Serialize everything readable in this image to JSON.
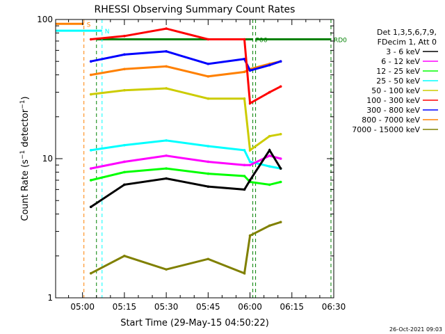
{
  "chart_data": {
    "type": "line",
    "title": "RHESSI Observing Summary Count Rates",
    "ylabel_main": "Count Rate (s",
    "ylabel_sup": "−1",
    "ylabel_tail": " detector",
    "ylabel_end": ")",
    "xlabel": "Start Time (29-May-15 04:50:22)",
    "yscale": "log",
    "ylim": [
      1,
      100
    ],
    "xlim": [
      "04:50:22",
      "06:30:00"
    ],
    "x_ticks": [
      "05:00",
      "05:15",
      "05:30",
      "05:45",
      "06:00",
      "06:15",
      "06:30"
    ],
    "y_ticks": [
      "1",
      "10",
      "100"
    ],
    "timestamp": "26-Oct-2021 09:03",
    "legend_header": [
      "Det 1,3,5,6,7,9,",
      "FDecim 1, Att 0"
    ],
    "series": [
      {
        "name": "3 - 6 keV",
        "color": "#000000",
        "x": [
          "05:03",
          "05:15",
          "05:30",
          "05:45",
          "05:58",
          "06:00",
          "06:07",
          "06:11"
        ],
        "y": [
          4.5,
          6.5,
          7.2,
          6.3,
          6.0,
          7.0,
          11.5,
          8.5
        ]
      },
      {
        "name": "6 - 12 keV",
        "color": "#ff00ff",
        "x": [
          "05:03",
          "05:15",
          "05:30",
          "05:45",
          "05:58",
          "06:00",
          "06:07",
          "06:11"
        ],
        "y": [
          8.5,
          9.5,
          10.5,
          9.5,
          9.0,
          9.0,
          10.5,
          10.0
        ]
      },
      {
        "name": "12 - 25 keV",
        "color": "#00ff00",
        "x": [
          "05:03",
          "05:15",
          "05:30",
          "05:45",
          "05:58",
          "06:00",
          "06:07",
          "06:11"
        ],
        "y": [
          7.0,
          8.0,
          8.5,
          7.8,
          7.5,
          6.8,
          6.5,
          6.8
        ]
      },
      {
        "name": "25 - 50 keV",
        "color": "#00ffff",
        "x": [
          "05:03",
          "05:15",
          "05:30",
          "05:45",
          "05:58",
          "06:00",
          "06:07",
          "06:11"
        ],
        "y": [
          11.5,
          12.5,
          13.5,
          12.3,
          11.5,
          9.5,
          8.8,
          8.5
        ]
      },
      {
        "name": "50 - 100 keV",
        "color": "#cccc00",
        "x": [
          "05:03",
          "05:15",
          "05:30",
          "05:45",
          "05:58",
          "06:00",
          "06:07",
          "06:11"
        ],
        "y": [
          29,
          31,
          32,
          27,
          27,
          11.5,
          14.5,
          15.0
        ]
      },
      {
        "name": "100 - 300 keV",
        "color": "#ff0000",
        "x": [
          "05:03",
          "05:15",
          "05:30",
          "05:45",
          "05:58",
          "06:00",
          "06:07",
          "06:11"
        ],
        "y": [
          72,
          76,
          86,
          72,
          72,
          25,
          30,
          33
        ]
      },
      {
        "name": "300 - 800 keV",
        "color": "#0000ff",
        "x": [
          "05:03",
          "05:15",
          "05:30",
          "05:45",
          "05:58",
          "06:00",
          "06:07",
          "06:11"
        ],
        "y": [
          50,
          56,
          59,
          48,
          52,
          43,
          47,
          50
        ]
      },
      {
        "name": "800 - 7000 keV",
        "color": "#ff8000",
        "x": [
          "05:03",
          "05:15",
          "05:30",
          "05:45",
          "05:58",
          "06:00",
          "06:07",
          "06:11"
        ],
        "y": [
          40,
          44,
          46,
          39,
          42,
          44,
          48,
          50
        ]
      },
      {
        "name": "7000 - 15000 keV",
        "color": "#808000",
        "x": [
          "05:03",
          "05:15",
          "05:30",
          "05:45",
          "05:58",
          "06:00",
          "06:07",
          "06:11"
        ],
        "y": [
          1.5,
          2.0,
          1.6,
          1.9,
          1.5,
          2.8,
          3.3,
          3.5
        ]
      }
    ],
    "annotations": [
      {
        "label": "S",
        "color": "#ff8000",
        "x_start": "04:50:22",
        "x_end": "05:00:30",
        "y": 93
      },
      {
        "label": "N",
        "color": "#00ffff",
        "x_start": "04:50:22",
        "x_end": "05:07:00",
        "y": 83
      },
      {
        "label": "RD0",
        "color": "#008000",
        "x_start": "06:02:00",
        "x_end": "06:29:00",
        "y": 72
      },
      {
        "label": "P06",
        "color": "#008000",
        "x_start": "05:05:00",
        "x_end": "06:01:00",
        "y": 72
      }
    ]
  }
}
